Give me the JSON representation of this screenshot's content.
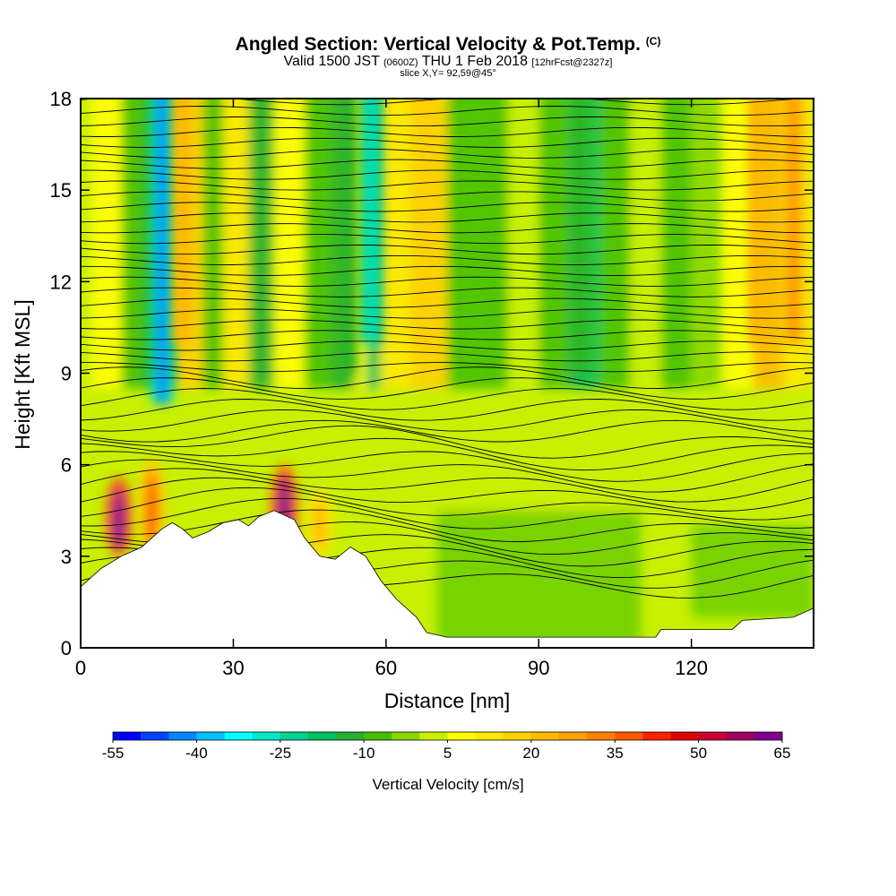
{
  "header": {
    "title": "Angled Section: Vertical Velocity & Pot.Temp.",
    "title_unit": "(C)",
    "valid_a": "Valid 1500 JST",
    "valid_b": "(0600Z)",
    "valid_c": "THU 1 Feb 2018",
    "valid_d": "[12hrFcst@2327z]",
    "slice": "slice X,Y= 92,59@45°"
  },
  "chart_data": {
    "type": "heatmap",
    "xlabel": "Distance [nm]",
    "ylabel": "Height [Kft MSL]",
    "xlim": [
      0,
      144
    ],
    "ylim": [
      0,
      18
    ],
    "x_ticks": [
      0,
      30,
      60,
      90,
      120
    ],
    "y_ticks": [
      0,
      3,
      6,
      9,
      12,
      15,
      18
    ],
    "colorbar": {
      "title": "Vertical Velocity [cm/s]",
      "labels": [
        "-55",
        "-40",
        "-25",
        "-10",
        "5",
        "20",
        "35",
        "50",
        "65"
      ],
      "min": -55,
      "max": 65,
      "step": 5,
      "colors": [
        "#0000ff",
        "#0044ff",
        "#0088ff",
        "#00c0ff",
        "#00ffff",
        "#00e8c8",
        "#00d090",
        "#00c060",
        "#22b030",
        "#44c000",
        "#88d800",
        "#c8f000",
        "#ffff00",
        "#ffe800",
        "#ffd000",
        "#ffb800",
        "#ffa000",
        "#ff8000",
        "#ff5800",
        "#ff2000",
        "#e00000",
        "#c80030",
        "#a00060",
        "#800090"
      ]
    },
    "terrain_profile": [
      [
        0,
        2.0
      ],
      [
        4,
        2.6
      ],
      [
        8,
        3.0
      ],
      [
        12,
        3.3
      ],
      [
        14,
        3.6
      ],
      [
        16,
        3.9
      ],
      [
        18,
        4.1
      ],
      [
        20,
        3.9
      ],
      [
        22,
        3.6
      ],
      [
        25,
        3.8
      ],
      [
        28,
        4.1
      ],
      [
        31,
        4.2
      ],
      [
        33,
        4.0
      ],
      [
        35,
        4.3
      ],
      [
        38,
        4.5
      ],
      [
        42,
        4.2
      ],
      [
        44,
        3.6
      ],
      [
        47,
        3.0
      ],
      [
        50,
        2.9
      ],
      [
        53,
        3.3
      ],
      [
        56,
        3.0
      ],
      [
        59,
        2.2
      ],
      [
        62,
        1.6
      ],
      [
        66,
        1.0
      ],
      [
        68,
        0.5
      ],
      [
        72,
        0.35
      ],
      [
        90,
        0.35
      ],
      [
        113,
        0.35
      ],
      [
        114,
        0.6
      ],
      [
        128,
        0.6
      ],
      [
        130,
        0.9
      ],
      [
        140,
        1.0
      ],
      [
        144,
        1.3
      ]
    ],
    "updrafts": [
      {
        "x": 7.5,
        "top": 5.6,
        "w": 65
      },
      {
        "x": 14,
        "top": 6.2,
        "w": 35
      },
      {
        "x": 40,
        "top": 6.0,
        "w": 65
      },
      {
        "x": 47,
        "top": 5.2,
        "w": 20
      },
      {
        "x": 20,
        "top": 18,
        "w": 22
      },
      {
        "x": 68,
        "top": 18,
        "w": 18
      },
      {
        "x": 133,
        "top": 18,
        "w": 22
      },
      {
        "x": 140,
        "top": 18,
        "w": 25
      }
    ],
    "downdrafts": [
      {
        "x": 16,
        "bottom": 8.0,
        "w": -45
      },
      {
        "x": 57,
        "bottom": 10.0,
        "w": -30
      },
      {
        "x": 52,
        "bottom": 9.0,
        "w": -15
      },
      {
        "x": 98,
        "bottom": 9.0,
        "w": -12
      }
    ]
  }
}
